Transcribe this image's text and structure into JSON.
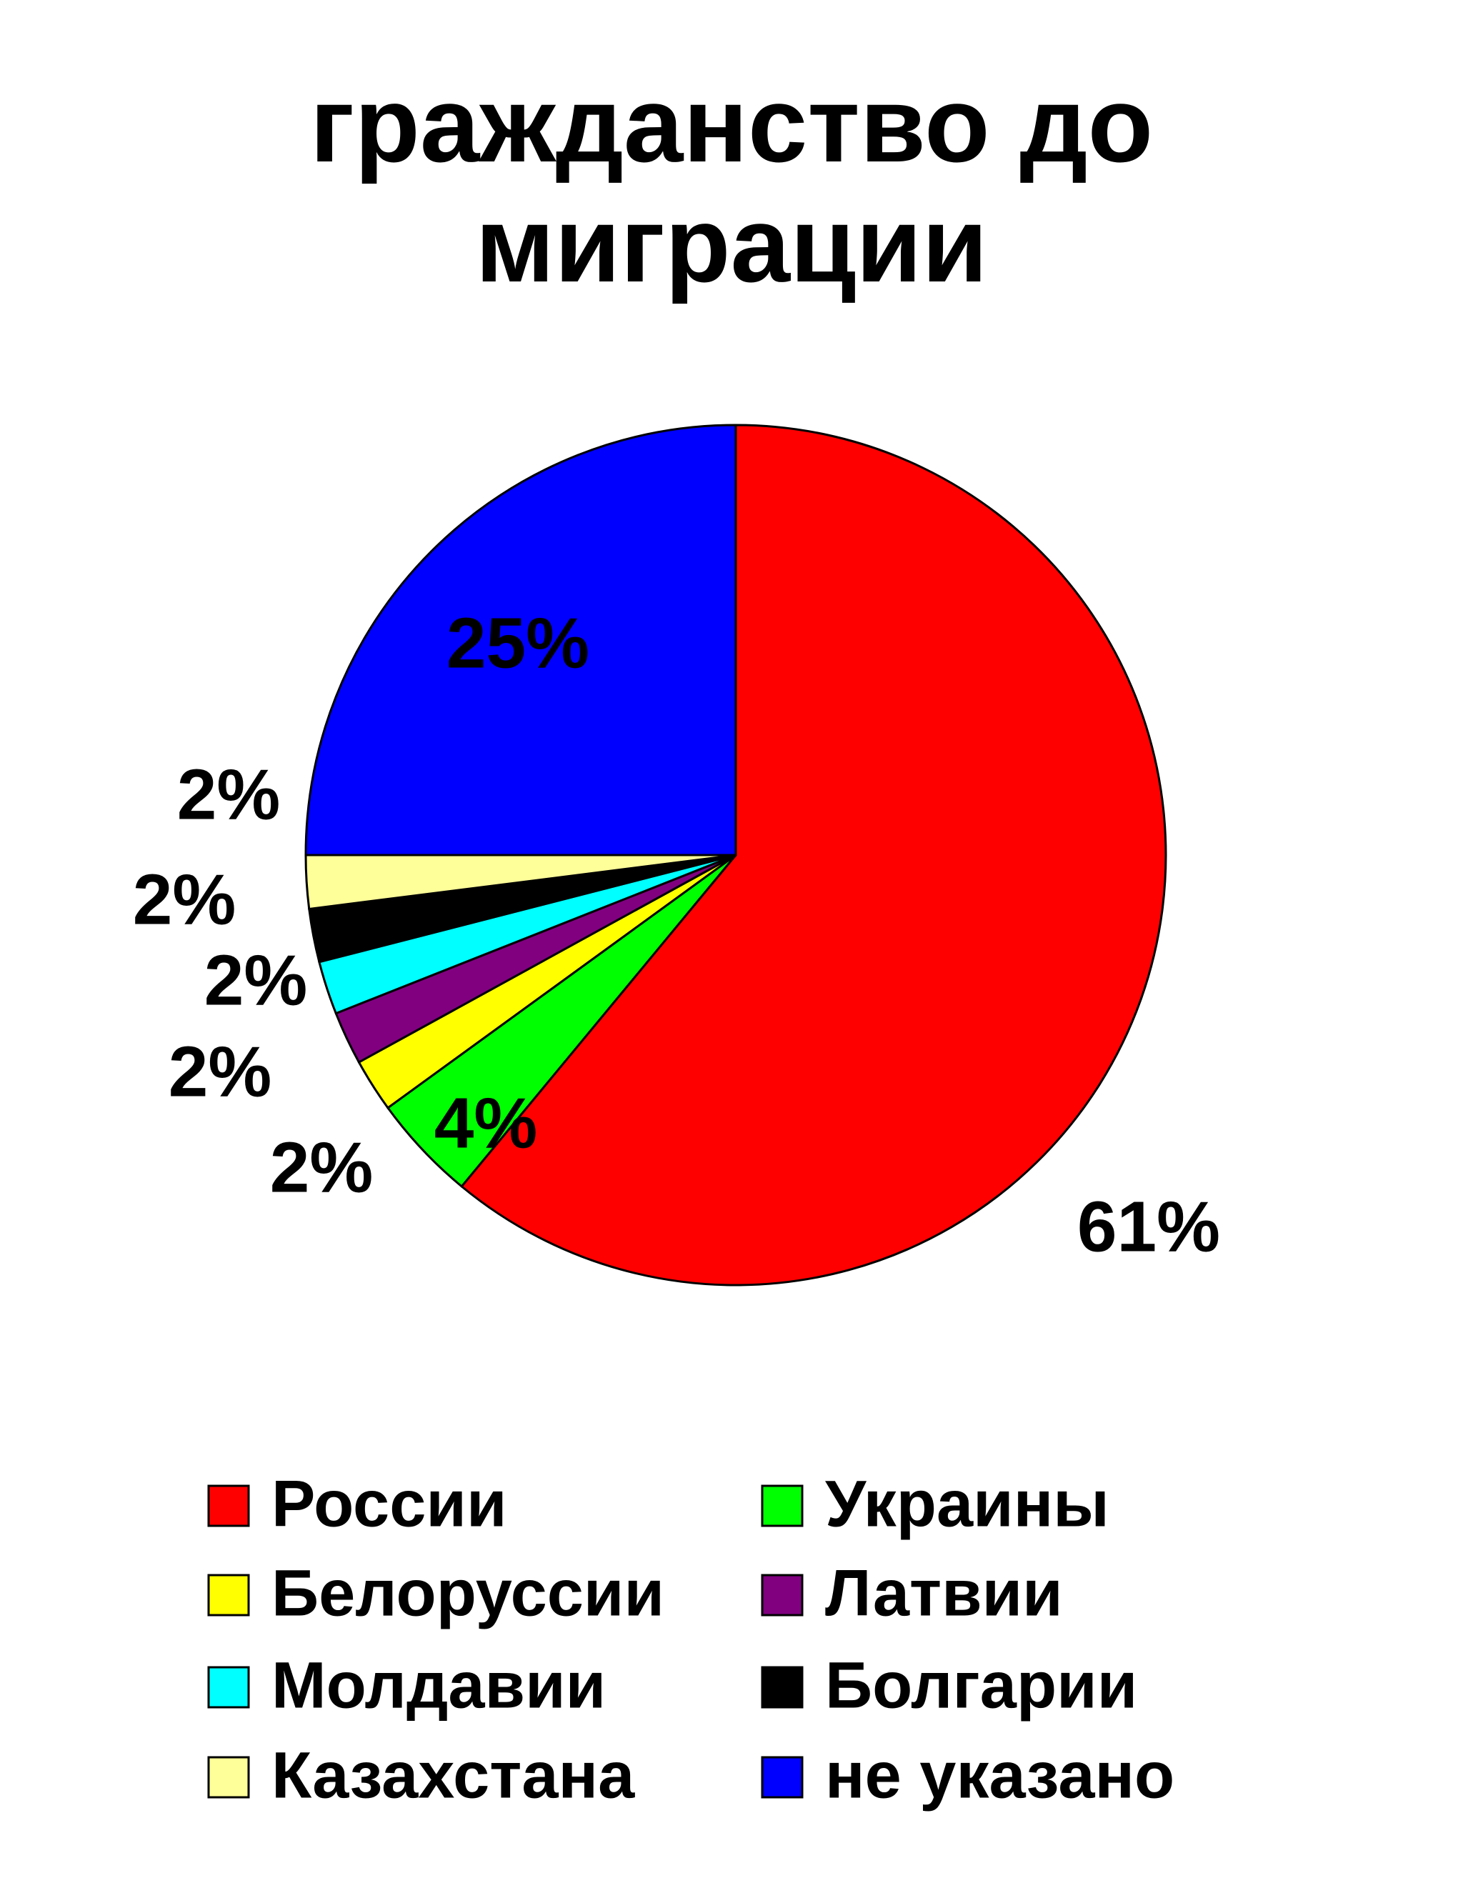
{
  "chart_data": {
    "type": "pie",
    "title": "гражданство до миграции",
    "categories": [
      "России",
      "Украины",
      "Белоруссии",
      "Латвии",
      "Молдавии",
      "Болгарии",
      "Казахстана",
      "не указано"
    ],
    "values": [
      61,
      4,
      2,
      2,
      2,
      2,
      2,
      25
    ],
    "value_labels": [
      "61%",
      "4%",
      "2%",
      "2%",
      "2%",
      "2%",
      "2%",
      "25%"
    ],
    "colors": [
      "#ff0000",
      "#00ff00",
      "#ffff00",
      "#800080",
      "#00ffff",
      "#000000",
      "#ffff99",
      "#0000ff"
    ],
    "legend": "bottom"
  }
}
